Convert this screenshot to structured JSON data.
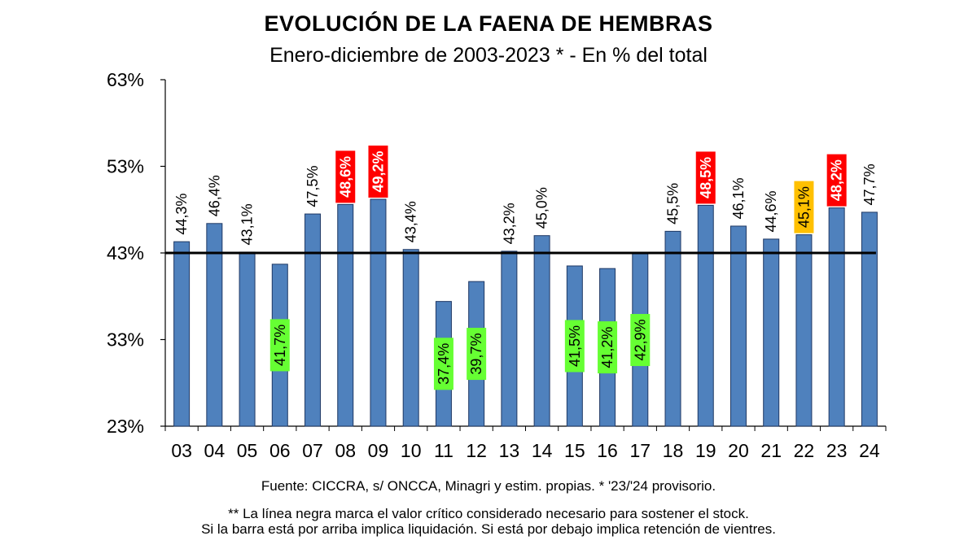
{
  "chart_data": {
    "type": "bar",
    "title": "EVOLUCIÓN DE LA FAENA DE HEMBRAS",
    "subtitle": "Enero-diciembre de 2003-2023 * - En % del total",
    "categories": [
      "03",
      "04",
      "05",
      "06",
      "07",
      "08",
      "09",
      "10",
      "11",
      "12",
      "13",
      "14",
      "15",
      "16",
      "17",
      "18",
      "19",
      "20",
      "21",
      "22",
      "23",
      "24"
    ],
    "values": [
      44.3,
      46.4,
      43.1,
      41.7,
      47.5,
      48.6,
      49.2,
      43.4,
      37.4,
      39.7,
      43.2,
      45.0,
      41.5,
      41.2,
      42.9,
      45.5,
      48.5,
      46.1,
      44.6,
      45.1,
      48.2,
      47.7
    ],
    "data_labels": [
      "44,3%",
      "46,4%",
      "43,1%",
      "41,7%",
      "47,5%",
      "48,6%",
      "49,2%",
      "43,4%",
      "37,4%",
      "39,7%",
      "43,2%",
      "45,0%",
      "41,5%",
      "41,2%",
      "42,9%",
      "45,5%",
      "48,5%",
      "46,1%",
      "44,6%",
      "45,1%",
      "48,2%",
      "47,7%"
    ],
    "label_styles": [
      "plain",
      "plain",
      "plain",
      "green",
      "plain",
      "red",
      "red",
      "plain",
      "green",
      "green",
      "plain",
      "plain",
      "green",
      "green",
      "green",
      "plain",
      "red",
      "plain",
      "plain",
      "orange",
      "red",
      "plain"
    ],
    "ylim": [
      23,
      63
    ],
    "yticks": [
      23,
      33,
      43,
      53,
      63
    ],
    "ytick_labels": [
      "23%",
      "33%",
      "43%",
      "53%",
      "63%"
    ],
    "reference_line": 43,
    "grid": false,
    "colors": {
      "bar_fill": "#4f81bd",
      "bar_stroke": "#1f3864",
      "red_label": "#ff0000",
      "green_label": "#66ff33",
      "orange_label": "#ffc000",
      "reference_line": "#000000"
    }
  },
  "footer": {
    "source": "Fuente: CICCRA, s/ ONCCA, Minagri y estim. propias. * '23/'24  provisorio.",
    "note_line1": "** La línea negra marca el valor crítico considerado necesario para sostener el stock.",
    "note_line2": "Si la barra está por arriba implica liquidación. Si está por debajo implica retención de vientres."
  }
}
